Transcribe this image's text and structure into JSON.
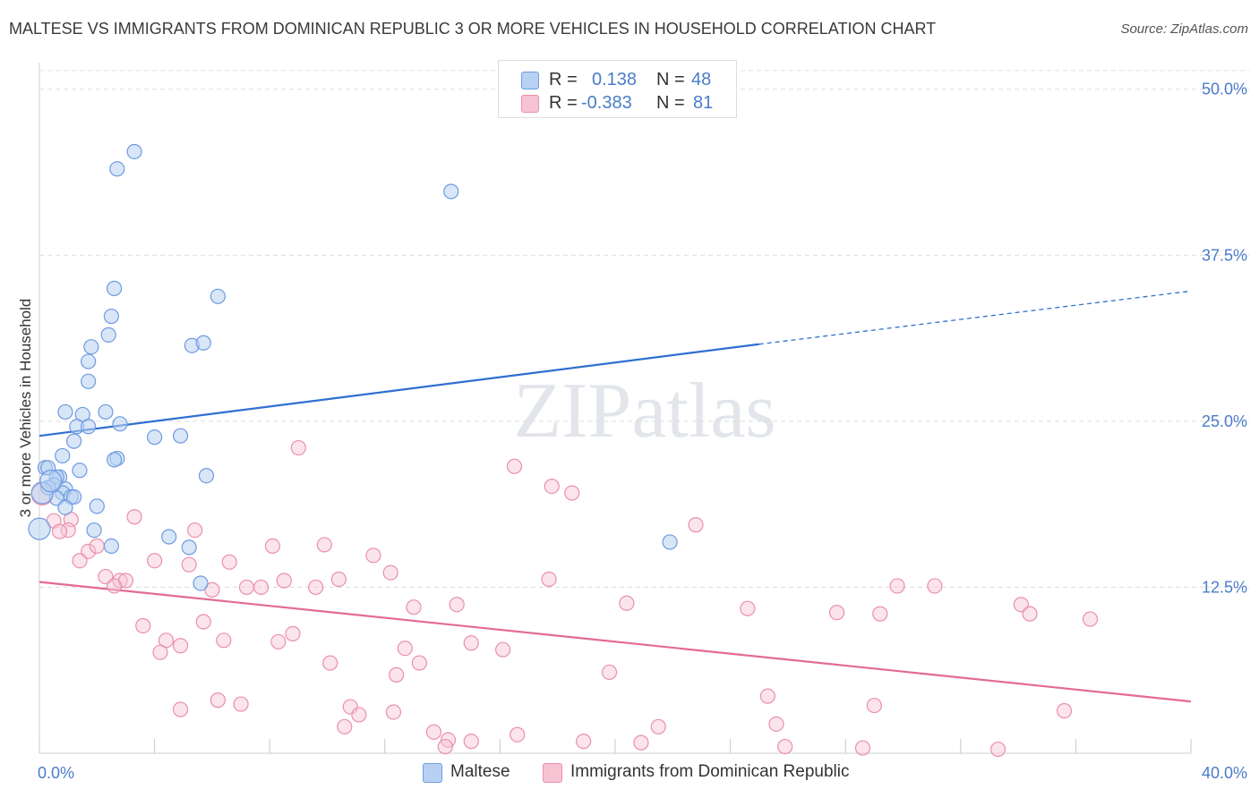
{
  "title": "MALTESE VS IMMIGRANTS FROM DOMINICAN REPUBLIC 3 OR MORE VEHICLES IN HOUSEHOLD CORRELATION CHART",
  "source": "Source: ZipAtlas.com",
  "watermark": "ZIPatlas",
  "colors": {
    "blue": "#2f6fd1",
    "blue_fill": "#b8d1f3",
    "pink": "#e46a94",
    "pink_fill": "#f7c3d3",
    "axis_text": "#4a7cc9"
  },
  "legend": {
    "rows": [
      {
        "r_label": "R =",
        "r_value": "0.138",
        "n_label": "N =",
        "n_value": "48"
      },
      {
        "r_label": "R =",
        "r_value": "-0.383",
        "n_label": "N =",
        "n_value": "81"
      }
    ]
  },
  "bottom_legend": [
    "Maltese",
    "Immigrants from Dominican Republic"
  ],
  "chart_data": {
    "type": "scatter",
    "xlabel": "",
    "ylabel": "3 or more Vehicles in Household",
    "xlim": [
      0,
      40
    ],
    "ylim": [
      0,
      52
    ],
    "x_tick_labels": [
      "0.0%",
      "40.0%"
    ],
    "y_ticks": [
      12.5,
      25.0,
      37.5,
      50.0
    ],
    "y_tick_labels": [
      "12.5%",
      "25.0%",
      "37.5%",
      "50.0%"
    ],
    "grid": "horizontal dashed",
    "legend_position": "top-center",
    "series": [
      {
        "name": "Maltese",
        "color": "#2f6fd1",
        "trend": {
          "x_start": 0,
          "y_start": 23.9,
          "x_solid_end": 25,
          "y_solid_end": 30.8,
          "x_dashed_end": 40,
          "y_dashed_end": 34.8
        },
        "points": [
          [
            3.3,
            45.3
          ],
          [
            2.7,
            44.0
          ],
          [
            14.3,
            42.3
          ],
          [
            2.6,
            35.0
          ],
          [
            6.2,
            34.4
          ],
          [
            2.5,
            32.9
          ],
          [
            2.4,
            31.5
          ],
          [
            1.8,
            30.6
          ],
          [
            5.3,
            30.7
          ],
          [
            5.7,
            30.9
          ],
          [
            1.7,
            29.5
          ],
          [
            1.7,
            28.0
          ],
          [
            0.9,
            25.7
          ],
          [
            1.5,
            25.5
          ],
          [
            2.3,
            25.7
          ],
          [
            1.3,
            24.6
          ],
          [
            1.7,
            24.6
          ],
          [
            2.8,
            24.8
          ],
          [
            4.0,
            23.8
          ],
          [
            4.9,
            23.9
          ],
          [
            1.2,
            23.5
          ],
          [
            0.8,
            22.4
          ],
          [
            2.7,
            22.2
          ],
          [
            2.6,
            22.1
          ],
          [
            0.2,
            21.5
          ],
          [
            0.3,
            21.5
          ],
          [
            1.4,
            21.3
          ],
          [
            5.8,
            20.9
          ],
          [
            0.7,
            20.8
          ],
          [
            0.6,
            20.8
          ],
          [
            0.5,
            20.2
          ],
          [
            0.3,
            20.0
          ],
          [
            0.9,
            19.9
          ],
          [
            0.8,
            19.6
          ],
          [
            1.1,
            19.3
          ],
          [
            1.2,
            19.3
          ],
          [
            0.6,
            19.2
          ],
          [
            0.9,
            18.5
          ],
          [
            2.0,
            18.6
          ],
          [
            1.9,
            16.8
          ],
          [
            4.5,
            16.3
          ],
          [
            2.5,
            15.6
          ],
          [
            5.2,
            15.5
          ],
          [
            21.9,
            15.9
          ],
          [
            5.6,
            12.8
          ],
          [
            0.0,
            16.9
          ],
          [
            0.1,
            19.6
          ],
          [
            0.4,
            20.5
          ]
        ]
      },
      {
        "name": "Immigrants from Dominican Republic",
        "color": "#e46a94",
        "trend": {
          "x_start": 0,
          "y_start": 12.9,
          "x_end": 40,
          "y_end": 3.9
        },
        "points": [
          [
            0.1,
            19.5
          ],
          [
            0.5,
            17.5
          ],
          [
            1.1,
            17.6
          ],
          [
            1.0,
            16.8
          ],
          [
            0.7,
            16.7
          ],
          [
            1.7,
            15.2
          ],
          [
            1.4,
            14.5
          ],
          [
            2.0,
            15.6
          ],
          [
            3.3,
            17.8
          ],
          [
            9.0,
            23.0
          ],
          [
            16.5,
            21.6
          ],
          [
            17.8,
            20.1
          ],
          [
            18.5,
            19.6
          ],
          [
            5.4,
            16.8
          ],
          [
            8.1,
            15.6
          ],
          [
            9.9,
            15.7
          ],
          [
            11.6,
            14.9
          ],
          [
            12.2,
            13.6
          ],
          [
            4.0,
            14.5
          ],
          [
            5.2,
            14.2
          ],
          [
            6.6,
            14.4
          ],
          [
            2.3,
            13.3
          ],
          [
            2.8,
            13.0
          ],
          [
            3.0,
            13.0
          ],
          [
            2.6,
            12.6
          ],
          [
            6.0,
            12.3
          ],
          [
            7.2,
            12.5
          ],
          [
            7.7,
            12.5
          ],
          [
            8.5,
            13.0
          ],
          [
            9.6,
            12.5
          ],
          [
            10.4,
            13.1
          ],
          [
            17.7,
            13.1
          ],
          [
            13.0,
            11.0
          ],
          [
            14.5,
            11.2
          ],
          [
            20.4,
            11.3
          ],
          [
            24.6,
            10.9
          ],
          [
            27.7,
            10.6
          ],
          [
            29.2,
            10.5
          ],
          [
            29.8,
            12.6
          ],
          [
            31.1,
            12.6
          ],
          [
            34.1,
            11.2
          ],
          [
            34.4,
            10.5
          ],
          [
            36.5,
            10.1
          ],
          [
            22.8,
            17.2
          ],
          [
            3.6,
            9.6
          ],
          [
            4.4,
            8.5
          ],
          [
            4.9,
            8.1
          ],
          [
            5.7,
            9.9
          ],
          [
            4.2,
            7.6
          ],
          [
            6.4,
            8.5
          ],
          [
            8.3,
            8.4
          ],
          [
            8.8,
            9.0
          ],
          [
            12.7,
            7.9
          ],
          [
            15.0,
            8.3
          ],
          [
            16.1,
            7.8
          ],
          [
            10.1,
            6.8
          ],
          [
            12.4,
            5.9
          ],
          [
            13.2,
            6.8
          ],
          [
            19.8,
            6.1
          ],
          [
            25.3,
            4.3
          ],
          [
            29.0,
            3.6
          ],
          [
            35.6,
            3.2
          ],
          [
            4.9,
            3.3
          ],
          [
            6.2,
            4.0
          ],
          [
            7.0,
            3.7
          ],
          [
            10.8,
            3.5
          ],
          [
            11.1,
            2.9
          ],
          [
            12.3,
            3.1
          ],
          [
            10.6,
            2.0
          ],
          [
            13.7,
            1.6
          ],
          [
            14.2,
            1.0
          ],
          [
            15.0,
            0.9
          ],
          [
            16.6,
            1.4
          ],
          [
            18.9,
            0.9
          ],
          [
            20.9,
            0.8
          ],
          [
            21.5,
            2.0
          ],
          [
            25.6,
            2.2
          ],
          [
            25.9,
            0.5
          ],
          [
            28.6,
            0.4
          ],
          [
            33.3,
            0.3
          ],
          [
            14.1,
            0.5
          ]
        ]
      }
    ]
  }
}
